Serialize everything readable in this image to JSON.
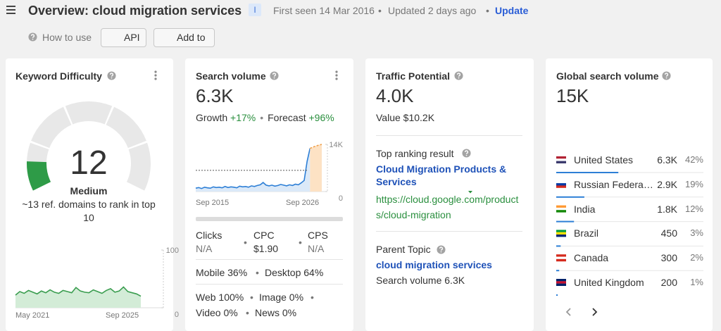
{
  "header": {
    "title": "Overview: cloud migration services",
    "badge": "I",
    "first_seen": "First seen 14 Mar 2016",
    "updated": "Updated 2 days ago",
    "update": "Update"
  },
  "toolbar": {
    "how_to_use": "How to use",
    "api": "API",
    "add_to": "Add to"
  },
  "keyword_difficulty": {
    "title": "Keyword Difficulty",
    "value": 12,
    "level": "Medium",
    "note": "~13 ref. domains to rank in top 10",
    "trend": {
      "values": [
        22,
        28,
        25,
        30,
        27,
        24,
        29,
        26,
        31,
        27,
        25,
        30,
        28,
        26,
        35,
        29,
        27,
        26,
        31,
        28,
        25,
        30,
        33,
        27,
        29,
        36,
        28,
        26,
        24,
        20
      ],
      "ylim": [
        0,
        100
      ],
      "yticks": [
        0,
        100
      ],
      "x_start": "May 2021",
      "x_end": "Sep 2025"
    }
  },
  "search_volume": {
    "title": "Search volume",
    "volume": {
      "value": 6300,
      "label": "6.3K"
    },
    "growth_label": "Growth",
    "growth": "+17%",
    "forecast_label": "Forecast",
    "forecast": "+96%",
    "trend": {
      "values": [
        1000,
        1200,
        900,
        1300,
        1100,
        1000,
        1400,
        1200,
        1300,
        1100,
        1500,
        1200,
        1400,
        1300,
        1100,
        1600,
        1400,
        1500,
        1300,
        1700,
        1500,
        1800,
        2000,
        2700,
        1900,
        1700,
        1900,
        1600,
        1800,
        2100,
        1900,
        1700,
        2000,
        1800,
        2200,
        2000,
        2600,
        3300,
        9000,
        12800
      ],
      "forecast": [
        12800,
        13200,
        13500,
        13800,
        14000
      ],
      "ylim": [
        0,
        14000
      ],
      "yticks": [
        0,
        {
          "value": 14000,
          "label": "14K"
        }
      ],
      "x_start": "Sep 2015",
      "x_end": "Sep 2026"
    },
    "clicks_label": "Clicks",
    "clicks": "N/A",
    "cpc_label": "CPC",
    "cpc": "$1.90",
    "cps_label": "CPS",
    "cps": "N/A",
    "mobile": "Mobile 36%",
    "desktop": "Desktop 64%",
    "web": "Web 100%",
    "image": "Image 0%",
    "video": "Video 0%",
    "news": "News 0%"
  },
  "traffic_potential": {
    "title": "Traffic Potential",
    "value": "4.0K",
    "traffic_value": "Value $10.2K",
    "top_result_label": "Top ranking result",
    "top_result_title": "Cloud Migration Products & Services",
    "top_result_url": "https://cloud.google.com/products/cloud-migration",
    "parent_topic_label": "Parent Topic",
    "parent_topic": "cloud migration services",
    "parent_volume": "Search volume 6.3K"
  },
  "global_volume": {
    "title": "Global search volume",
    "value": "15K",
    "countries": [
      {
        "name": "United States",
        "volume": "6.3K",
        "share": 42,
        "share_label": "42%"
      },
      {
        "name": "Russian Federation",
        "volume": "2.9K",
        "share": 19,
        "share_label": "19%"
      },
      {
        "name": "India",
        "volume": "1.8K",
        "share": 12,
        "share_label": "12%"
      },
      {
        "name": "Brazil",
        "volume": "450",
        "share": 3,
        "share_label": "3%"
      },
      {
        "name": "Canada",
        "volume": "300",
        "share": 2,
        "share_label": "2%"
      },
      {
        "name": "United Kingdom",
        "volume": "200",
        "share": 1,
        "share_label": "1%"
      }
    ]
  }
}
